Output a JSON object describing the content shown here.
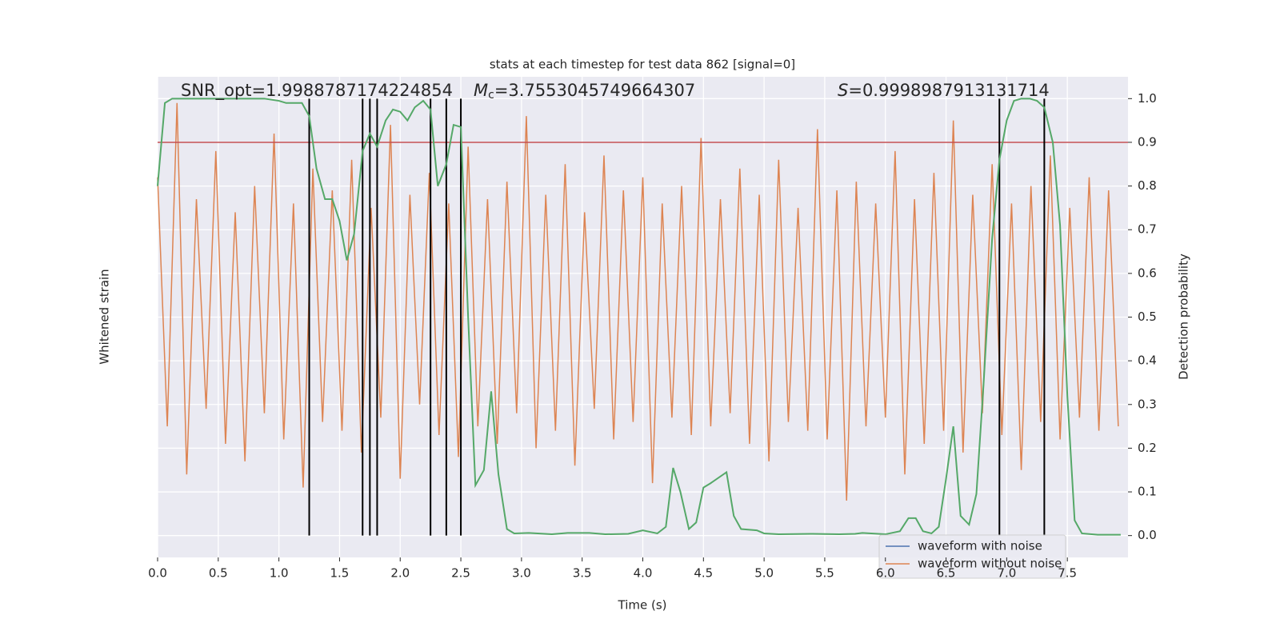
{
  "chart_data": {
    "type": "line",
    "title": "stats at each timestep for test data 862 [signal=0]",
    "xlabel": "Time (s)",
    "ylabel": "Whitened strain",
    "y2label": "Detection probability",
    "annotations": {
      "snr": "SNR_opt=1.9988787174224854",
      "mc": {
        "symbol": "M",
        "sub": "c",
        "text": "=3.7553045749664307"
      },
      "s": {
        "symbol": "S",
        "text": "=0.9998987913131714"
      }
    },
    "xlim": [
      0,
      8
    ],
    "xticks": [
      {
        "value": 0,
        "label": "0.0"
      },
      0.5,
      {
        "value": 1,
        "label": "1.0"
      },
      1.5,
      {
        "value": 2,
        "label": "2.0"
      },
      2.5,
      {
        "value": 3,
        "label": "3.0"
      },
      3.5,
      {
        "value": 4,
        "label": "4.0"
      },
      4.5,
      {
        "value": 5,
        "label": "5.0"
      },
      5.5,
      {
        "value": 6,
        "label": "6.0"
      },
      6.5,
      {
        "value": 7,
        "label": "7.0"
      },
      7.5
    ],
    "ylim": [
      -5.5,
      5.5
    ],
    "y2lim": [
      -0.05,
      1.05
    ],
    "y2ticks": [
      {
        "value": 0,
        "label": "0.0"
      },
      0.1,
      0.2,
      0.3,
      0.4,
      0.5,
      0.6,
      0.7,
      0.8,
      0.9,
      {
        "value": 1,
        "label": "1.0"
      }
    ],
    "grid": true,
    "threshold": {
      "value": 0.9,
      "color": "#c44e52"
    },
    "detections": [
      1.25,
      1.69,
      1.75,
      1.81,
      2.25,
      2.38,
      2.5,
      6.94,
      7.31
    ],
    "legend_position": "lower right",
    "legend_entries": [
      {
        "name": "waveform with noise",
        "color": "#4c72b0"
      },
      {
        "name": "waveform without noise",
        "color": "#dd8452"
      }
    ],
    "series": [
      {
        "color": "#dd8452",
        "axis": "y",
        "x": [
          0,
          0.08,
          0.16,
          0.24,
          0.32,
          0.4,
          0.48,
          0.56,
          0.64,
          0.72,
          0.8,
          0.88,
          0.96,
          1.04,
          1.12,
          1.2,
          1.28,
          1.36,
          1.44,
          1.52,
          1.6,
          1.68,
          1.76,
          1.84,
          1.92,
          2,
          2.08,
          2.16,
          2.24,
          2.32,
          2.4,
          2.48,
          2.56,
          2.64,
          2.72,
          2.8,
          2.88,
          2.96,
          3.04,
          3.12,
          3.2,
          3.28,
          3.36,
          3.44,
          3.52,
          3.6,
          3.68,
          3.76,
          3.84,
          3.92,
          4,
          4.08,
          4.16,
          4.24,
          4.32,
          4.4,
          4.48,
          4.56,
          4.64,
          4.72,
          4.8,
          4.88,
          4.96,
          5.04,
          5.12,
          5.2,
          5.28,
          5.36,
          5.44,
          5.52,
          5.6,
          5.68,
          5.76,
          5.84,
          5.92,
          6,
          6.08,
          6.16,
          6.24,
          6.32,
          6.4,
          6.48,
          6.56,
          6.64,
          6.72,
          6.8,
          6.88,
          6.96,
          7.04,
          7.12,
          7.2,
          7.28,
          7.36,
          7.44,
          7.52,
          7.6,
          7.68,
          7.76,
          7.84,
          7.92
        ],
        "values": [
          3.2,
          -2.5,
          4.9,
          -3.6,
          2.7,
          -2.1,
          3.8,
          -2.9,
          2.4,
          -3.3,
          3.0,
          -2.2,
          4.2,
          -2.8,
          2.6,
          -3.9,
          3.4,
          -2.4,
          2.9,
          -2.6,
          3.6,
          -3.1,
          2.5,
          -2.3,
          4.4,
          -3.7,
          2.8,
          -2.0,
          3.3,
          -2.7,
          2.6,
          -3.2,
          3.9,
          -2.5,
          2.7,
          -2.9,
          3.1,
          -2.2,
          4.6,
          -3.0,
          2.8,
          -2.6,
          3.5,
          -3.4,
          2.4,
          -2.1,
          3.7,
          -2.8,
          2.9,
          -2.4,
          3.2,
          -3.8,
          2.6,
          -2.3,
          3.0,
          -2.7,
          4.1,
          -2.5,
          2.7,
          -2.2,
          3.4,
          -2.9,
          2.8,
          -3.3,
          3.6,
          -2.4,
          2.5,
          -2.6,
          4.3,
          -2.8,
          2.9,
          -4.2,
          3.1,
          -2.5,
          2.6,
          -2.3,
          3.8,
          -3.6,
          2.7,
          -2.9,
          3.3,
          -2.6,
          4.5,
          -3.1,
          2.8,
          -2.2,
          3.5,
          -2.7,
          2.6,
          -3.5,
          3.0,
          -2.4,
          3.7,
          -2.8,
          2.5,
          -2.3,
          3.2,
          -2.6,
          2.9,
          -2.5
        ]
      },
      {
        "color": "#55a868",
        "axis": "y2",
        "x": [
          0,
          0.06,
          0.12,
          0.25,
          0.5,
          0.75,
          0.88,
          1.0,
          1.06,
          1.12,
          1.19,
          1.25,
          1.31,
          1.38,
          1.44,
          1.5,
          1.56,
          1.62,
          1.69,
          1.75,
          1.81,
          1.88,
          1.94,
          2.0,
          2.06,
          2.12,
          2.19,
          2.25,
          2.31,
          2.38,
          2.44,
          2.5,
          2.56,
          2.62,
          2.69,
          2.75,
          2.81,
          2.88,
          2.94,
          3.06,
          3.25,
          3.38,
          3.56,
          3.69,
          3.88,
          4.0,
          4.12,
          4.19,
          4.25,
          4.31,
          4.38,
          4.44,
          4.5,
          4.56,
          4.69,
          4.75,
          4.81,
          4.94,
          5.0,
          5.12,
          5.38,
          5.62,
          5.75,
          5.81,
          6.0,
          6.12,
          6.19,
          6.25,
          6.31,
          6.38,
          6.44,
          6.5,
          6.56,
          6.62,
          6.69,
          6.75,
          6.81,
          6.88,
          6.94,
          7.0,
          7.06,
          7.12,
          7.19,
          7.25,
          7.31,
          7.38,
          7.44,
          7.5,
          7.56,
          7.62,
          7.75,
          7.94
        ],
        "values": [
          0.8,
          0.99,
          1.0,
          1.0,
          1.0,
          1.0,
          1.0,
          0.995,
          0.99,
          0.99,
          0.99,
          0.96,
          0.84,
          0.77,
          0.77,
          0.72,
          0.63,
          0.69,
          0.88,
          0.92,
          0.89,
          0.95,
          0.975,
          0.97,
          0.95,
          0.98,
          0.995,
          0.975,
          0.8,
          0.85,
          0.94,
          0.935,
          0.5,
          0.115,
          0.15,
          0.33,
          0.14,
          0.015,
          0.005,
          0.006,
          0.003,
          0.006,
          0.006,
          0.003,
          0.004,
          0.012,
          0.005,
          0.02,
          0.155,
          0.1,
          0.015,
          0.03,
          0.11,
          0.12,
          0.145,
          0.045,
          0.015,
          0.012,
          0.005,
          0.003,
          0.004,
          0.003,
          0.004,
          0.006,
          0.003,
          0.01,
          0.04,
          0.04,
          0.01,
          0.005,
          0.02,
          0.13,
          0.25,
          0.045,
          0.025,
          0.095,
          0.35,
          0.68,
          0.86,
          0.95,
          0.995,
          1.0,
          1.0,
          0.995,
          0.98,
          0.9,
          0.71,
          0.32,
          0.035,
          0.005,
          0.002,
          0.002
        ]
      }
    ]
  }
}
